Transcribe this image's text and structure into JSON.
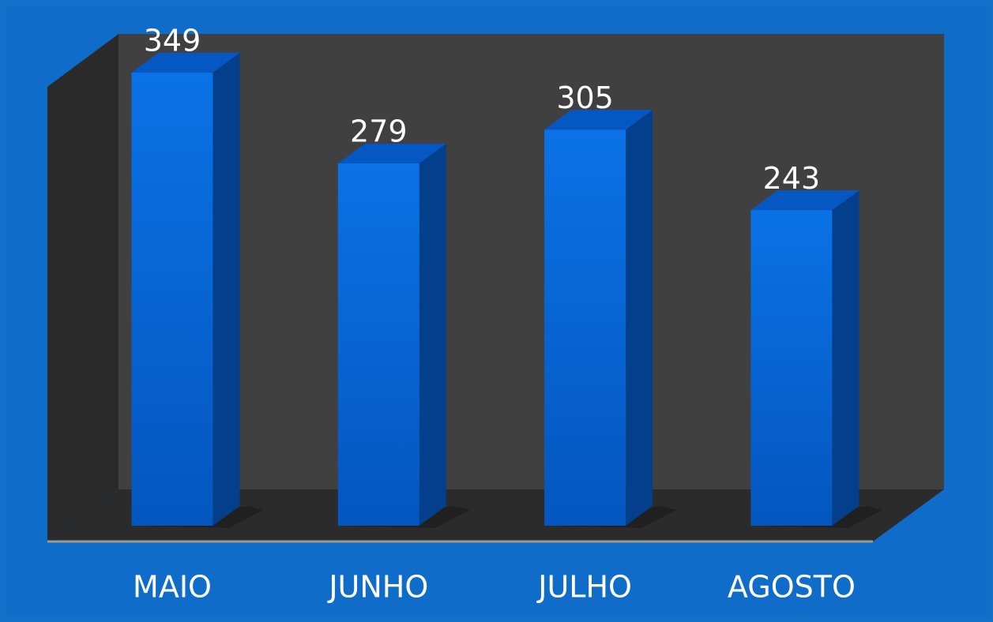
{
  "chart_data": {
    "type": "bar",
    "categories": [
      "MAIO",
      "JUNHO",
      "JULHO",
      "AGOSTO"
    ],
    "values": [
      349,
      279,
      305,
      243
    ],
    "color": "#0a6ee0"
  }
}
